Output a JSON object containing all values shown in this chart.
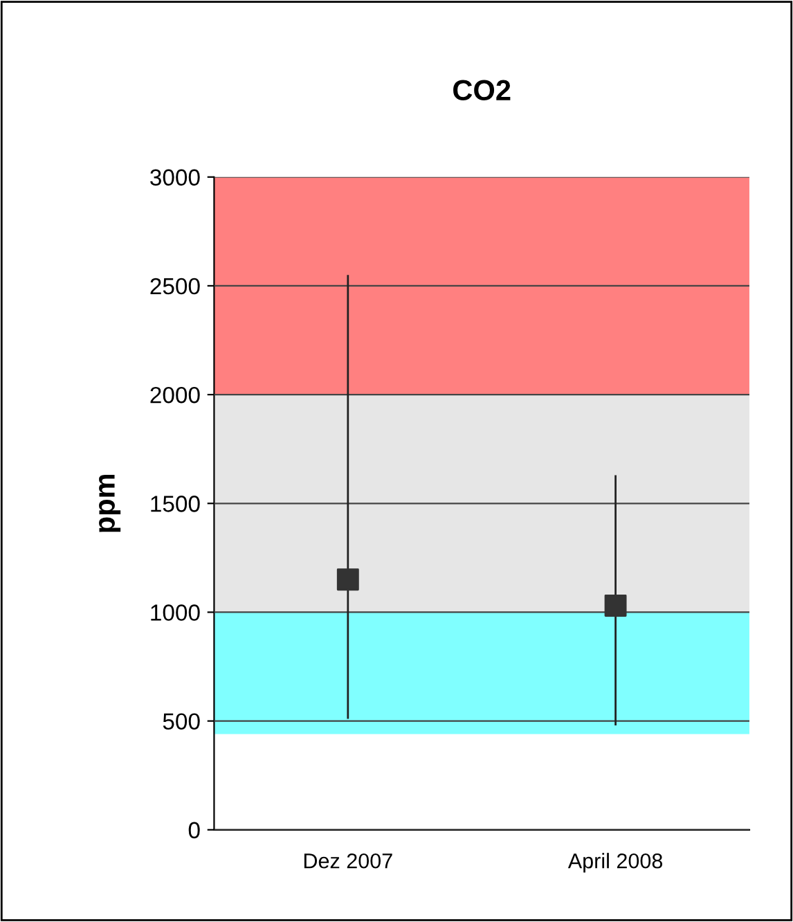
{
  "chart_data": {
    "type": "scatter",
    "title": "CO2",
    "ylabel": "ppm",
    "categories": [
      "Dez 2007",
      "April 2008"
    ],
    "series": [
      {
        "color": "#333333",
        "values": [
          1150,
          1030
        ],
        "errors": [
          [
            510,
            2550
          ],
          [
            480,
            1630
          ]
        ]
      }
    ],
    "ylim": [
      0,
      3000
    ],
    "yticks": [
      0,
      500,
      1000,
      1500,
      2000,
      2500,
      3000
    ],
    "grid": "y",
    "marker": "square",
    "bands": [
      {
        "axis": "y",
        "from": 440,
        "to": 1000,
        "color": "#80ffff"
      },
      {
        "axis": "y",
        "from": 1000,
        "to": 2000,
        "color": "#e6e6e6"
      },
      {
        "axis": "y",
        "from": 2000,
        "to": 3000,
        "color": "#ff8080"
      }
    ]
  }
}
